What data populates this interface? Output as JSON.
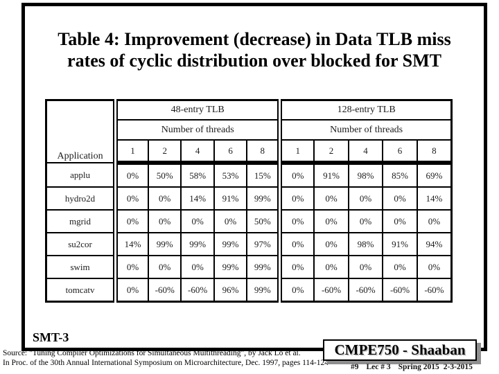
{
  "title": {
    "line1": "Table 4: Improvement (decrease) in Data TLB miss",
    "line2": "rates of cyclic distribution over blocked for SMT"
  },
  "table": {
    "application_header": "Application",
    "group_48": "48-entry TLB",
    "group_128": "128-entry TLB",
    "threads_label": "Number of threads",
    "thread_counts": [
      "1",
      "2",
      "4",
      "6",
      "8"
    ],
    "rows": [
      {
        "app": "applu",
        "tlb48": [
          "0%",
          "50%",
          "58%",
          "53%",
          "15%"
        ],
        "tlb128": [
          "0%",
          "91%",
          "98%",
          "85%",
          "69%"
        ]
      },
      {
        "app": "hydro2d",
        "tlb48": [
          "0%",
          "0%",
          "14%",
          "91%",
          "99%"
        ],
        "tlb128": [
          "0%",
          "0%",
          "0%",
          "0%",
          "14%"
        ]
      },
      {
        "app": "mgrid",
        "tlb48": [
          "0%",
          "0%",
          "0%",
          "0%",
          "50%"
        ],
        "tlb128": [
          "0%",
          "0%",
          "0%",
          "0%",
          "0%"
        ]
      },
      {
        "app": "su2cor",
        "tlb48": [
          "14%",
          "99%",
          "99%",
          "99%",
          "97%"
        ],
        "tlb128": [
          "0%",
          "0%",
          "98%",
          "91%",
          "94%"
        ]
      },
      {
        "app": "swim",
        "tlb48": [
          "0%",
          "0%",
          "0%",
          "99%",
          "99%"
        ],
        "tlb128": [
          "0%",
          "0%",
          "0%",
          "0%",
          "0%"
        ]
      },
      {
        "app": "tomcatv",
        "tlb48": [
          "0%",
          "-60%",
          "-60%",
          "96%",
          "99%"
        ],
        "tlb128": [
          "0%",
          "-60%",
          "-60%",
          "-60%",
          "-60%"
        ]
      }
    ]
  },
  "annotations": {
    "smt_label": "SMT-3",
    "source_line1": "Source: \"Tuning Compiler Optimizations for Simultaneous Multithreading\", by Jack Lo et al.",
    "source_line2": "In Proc. of the 30th Annual International Symposium on Microarchitecture, Dec. 1997, pages 114-124"
  },
  "footer": {
    "course": "CMPE750 - Shaaban",
    "slide_number": "#9",
    "lecture": "Lec # 3",
    "term": "Spring 2015",
    "date": "2-3-2015"
  },
  "colors": {
    "frame_border": "#000000",
    "box_shadow": "#8f8f8f",
    "table_text": "#1c1c1c"
  }
}
